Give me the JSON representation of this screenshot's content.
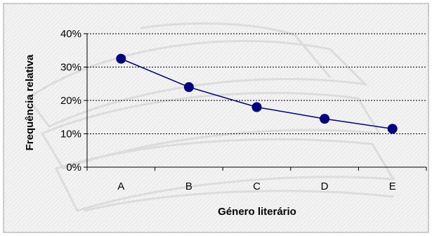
{
  "chart_data": {
    "type": "line",
    "title": "",
    "xlabel": "Género literário",
    "ylabel": "Frequência relativa",
    "categories": [
      "A",
      "B",
      "C",
      "D",
      "E"
    ],
    "series": [
      {
        "values": [
          32.5,
          24,
          18,
          14.5,
          11.5
        ]
      }
    ],
    "ylim": [
      0,
      40
    ],
    "yticks": [
      0,
      10,
      20,
      30,
      40
    ],
    "ytick_labels": [
      "0%",
      "10%",
      "20%",
      "30%",
      "40%"
    ],
    "grid": "horizontal dashed",
    "legend": "none",
    "colors": {
      "series": "#000080",
      "marker": "#000080",
      "grid": "#000000",
      "background": "#f2f2f2",
      "border": "#a0a0a0"
    }
  }
}
